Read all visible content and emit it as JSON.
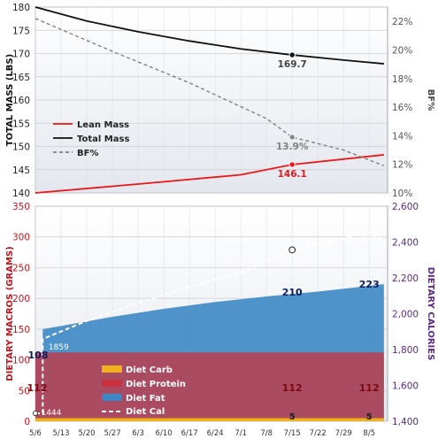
{
  "chart_data": [
    {
      "type": "line",
      "title": "",
      "x_dates": [
        "5/6",
        "5/13",
        "5/20",
        "5/27",
        "6/3",
        "6/10",
        "6/17",
        "6/24",
        "7/1",
        "7/8",
        "7/15",
        "7/22",
        "7/29",
        "8/5"
      ],
      "ylabel_left": "TOTAL MASS (LBS)",
      "ylabel_right": "BF%",
      "ylim_left": [
        140,
        180
      ],
      "ylim_right": [
        10,
        23
      ],
      "yticks_left": [
        "140",
        "145",
        "150",
        "155",
        "160",
        "165",
        "170",
        "175",
        "180"
      ],
      "yticks_right": [
        "10%",
        "12%",
        "14%",
        "16%",
        "18%",
        "20%",
        "22%"
      ],
      "grid": true,
      "legend": "left",
      "series": [
        {
          "name": "Lean Mass",
          "axis": "left",
          "color": "#e8191a",
          "points": [
            [
              "5/6",
              140.0
            ],
            [
              "6/3",
              141.9
            ],
            [
              "7/1",
              143.9
            ],
            [
              "7/15",
              146.1
            ],
            [
              "8/9",
              148.2
            ]
          ]
        },
        {
          "name": "Total Mass",
          "axis": "left",
          "color": "#111111",
          "points": [
            [
              "5/6",
              180.0
            ],
            [
              "5/20",
              177.0
            ],
            [
              "6/3",
              174.7
            ],
            [
              "6/17",
              172.7
            ],
            [
              "7/1",
              171.0
            ],
            [
              "7/15",
              169.7
            ],
            [
              "7/29",
              168.6
            ],
            [
              "8/9",
              167.8
            ]
          ]
        },
        {
          "name": "BF%",
          "axis": "right",
          "color": "#808080",
          "points": [
            [
              "5/6",
              22.2
            ],
            [
              "5/27",
              19.9
            ],
            [
              "6/17",
              17.7
            ],
            [
              "7/8",
              15.2
            ],
            [
              "7/15",
              13.9
            ],
            [
              "7/29",
              13.0
            ],
            [
              "8/9",
              11.9
            ]
          ]
        }
      ],
      "annotations": [
        {
          "label": "169.7",
          "x": "7/15",
          "y": 169.7,
          "axis": "left",
          "color": "#444444"
        },
        {
          "label": "13.9%",
          "x": "7/15",
          "y": 13.9,
          "axis": "right",
          "color": "#808080"
        },
        {
          "label": "146.1",
          "x": "7/15",
          "y": 146.1,
          "axis": "left",
          "color": "#e8191a"
        }
      ]
    },
    {
      "type": "area",
      "title": "",
      "x_dates": [
        "5/6",
        "5/13",
        "5/20",
        "5/27",
        "6/3",
        "6/10",
        "6/17",
        "6/24",
        "7/1",
        "7/8",
        "7/15",
        "7/22",
        "7/29",
        "8/5"
      ],
      "ylabel_left": "DIETARY MACROS (GRAMS)",
      "ylabel_right": "DIETARY CALORIES",
      "ylim_left": [
        0,
        350
      ],
      "ylim_right": [
        1400,
        2600
      ],
      "yticks_left": [
        "0",
        "50",
        "100",
        "150",
        "200",
        "250",
        "300",
        "350"
      ],
      "yticks_right": [
        "1,400",
        "1,600",
        "1,800",
        "2,000",
        "2,200",
        "2,400",
        "2,600"
      ],
      "grid": true,
      "legend": "bottom-left",
      "series": [
        {
          "name": "Diet Carb",
          "axis": "left",
          "color": "#f0b21a",
          "points": [
            [
              "5/6",
              5
            ],
            [
              "8/9",
              5
            ]
          ]
        },
        {
          "name": "Diet Protein",
          "axis": "left",
          "color": "#c9333f",
          "points": [
            [
              "5/6",
              112
            ],
            [
              "8/9",
              112
            ]
          ]
        },
        {
          "name": "Diet Fat",
          "axis": "left",
          "color": "#3c88c4",
          "points": [
            [
              "5/6",
              108
            ],
            [
              "5/8",
              108
            ],
            [
              "5/8",
              150
            ],
            [
              "5/13",
              155
            ],
            [
              "5/27",
              170
            ],
            [
              "6/10",
              183
            ],
            [
              "6/24",
              194
            ],
            [
              "7/8",
              203
            ],
            [
              "7/22",
              211
            ],
            [
              "8/9",
              223
            ]
          ]
        },
        {
          "name": "Diet Cal",
          "axis": "right",
          "color": "#ffffff",
          "points": [
            [
              "5/6",
              1444
            ],
            [
              "5/8",
              1444
            ],
            [
              "5/8",
              1859
            ],
            [
              "5/20",
              1960
            ],
            [
              "6/3",
              2060
            ],
            [
              "6/17",
              2150
            ],
            [
              "7/1",
              2230
            ],
            [
              "7/15",
              2356
            ],
            [
              "7/29",
              2420
            ],
            [
              "8/9",
              2477
            ]
          ]
        }
      ],
      "annotations": [
        {
          "label": "108",
          "x": "5/6",
          "y": 108,
          "kind": "fat"
        },
        {
          "label": "210",
          "x": "7/15",
          "y": 210,
          "kind": "fat"
        },
        {
          "label": "223",
          "x": "8/5",
          "y": 223,
          "kind": "fat"
        },
        {
          "label": "112",
          "x": "5/6",
          "y": 112,
          "kind": "protein"
        },
        {
          "label": "112",
          "x": "7/15",
          "y": 112,
          "kind": "protein"
        },
        {
          "label": "112",
          "x": "8/5",
          "y": 112,
          "kind": "protein"
        },
        {
          "label": "5",
          "x": "7/15",
          "y": 5,
          "kind": "carb"
        },
        {
          "label": "5",
          "x": "8/5",
          "y": 5,
          "kind": "carb"
        },
        {
          "label": "1444",
          "x": "5/6",
          "y": 1444,
          "kind": "cal"
        },
        {
          "label": "1859",
          "x": "5/8",
          "y": 1859,
          "kind": "cal"
        },
        {
          "label": "2356",
          "x": "7/15",
          "y": 2356,
          "kind": "cal"
        },
        {
          "label": "2477",
          "x": "8/9",
          "y": 2477,
          "kind": "cal"
        }
      ]
    }
  ]
}
